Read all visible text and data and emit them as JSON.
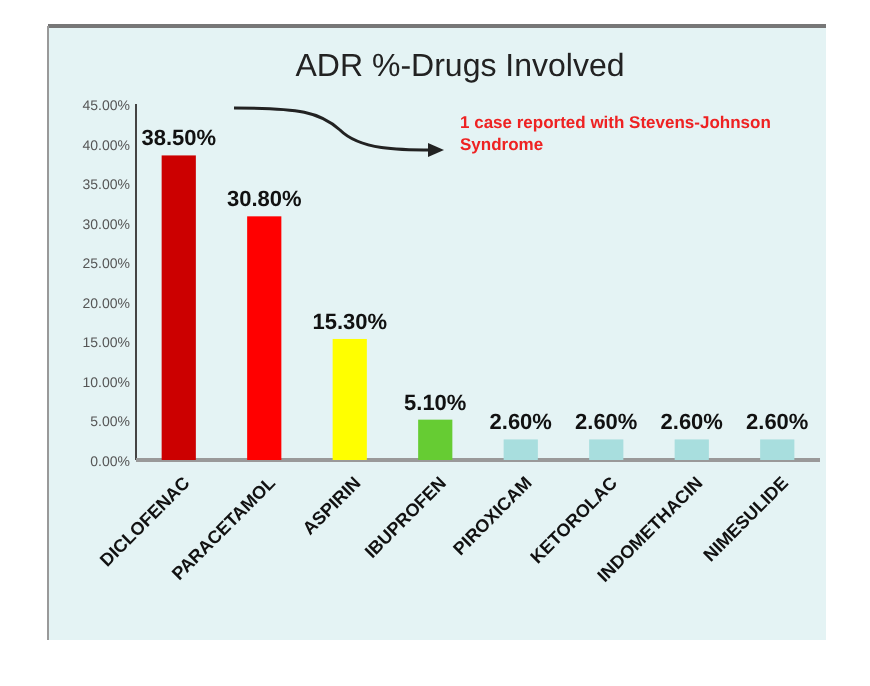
{
  "chart_data": {
    "type": "bar",
    "title": "ADR %-Drugs Involved",
    "categories": [
      "DICLOFENAC",
      "PARACETAMOL",
      "ASPIRIN",
      "IBUPROFEN",
      "PIROXICAM",
      "KETOROLAC",
      "INDOMETHACIN",
      "NIMESULIDE"
    ],
    "values": [
      38.5,
      30.8,
      15.3,
      5.1,
      2.6,
      2.6,
      2.6,
      2.6
    ],
    "value_labels": [
      "38.50%",
      "30.80%",
      "15.30%",
      "5.10%",
      "2.60%",
      "2.60%",
      "2.60%",
      "2.60%"
    ],
    "colors": [
      "#cc0000",
      "#ff0000",
      "#ffff00",
      "#66cc33",
      "#a8dede",
      "#a8dede",
      "#a8dede",
      "#a8dede"
    ],
    "ylim": [
      0,
      45
    ],
    "yticks": [
      {
        "value": 0,
        "label": "0.00%"
      },
      {
        "value": 5,
        "label": "5.00%"
      },
      {
        "value": 10,
        "label": "10.00%"
      },
      {
        "value": 15,
        "label": "15.00%"
      },
      {
        "value": 20,
        "label": "20.00%"
      },
      {
        "value": 25,
        "label": "25.00%"
      },
      {
        "value": 30,
        "label": "30.00%"
      },
      {
        "value": 35,
        "label": "35.00%"
      },
      {
        "value": 40,
        "label": "40.00%"
      },
      {
        "value": 45,
        "label": "45.00%"
      }
    ],
    "annotations": [
      "1 case reported with Stevens-Johnson Syndrome"
    ]
  }
}
